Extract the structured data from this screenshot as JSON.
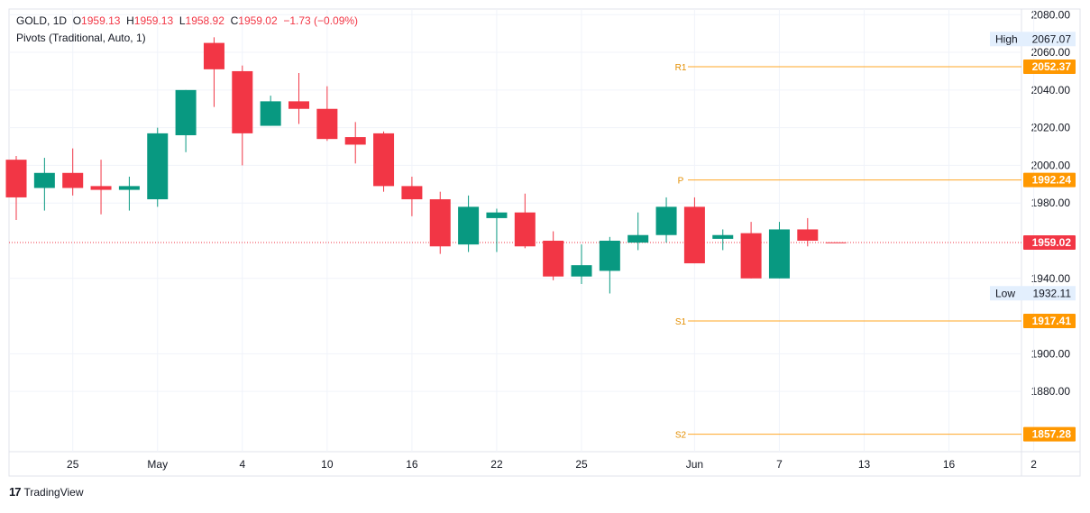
{
  "legend": {
    "symbol": "GOLD",
    "interval": "1D",
    "open_label": "O",
    "open": "1959.13",
    "high_label": "H",
    "high": "1959.13",
    "low_label": "L",
    "low": "1958.92",
    "close_label": "C",
    "close": "1959.02",
    "change": "−1.73 (−0.09%)",
    "indicator": "Pivots (Traditional, Auto, 1)"
  },
  "footer": {
    "brand": "TradingView",
    "logo_glyph": "17"
  },
  "colors": {
    "up": "#089981",
    "down": "#f23645",
    "pivot": "#ffa726",
    "pivot_label_text": "#e38e00",
    "grid": "#f0f3fa",
    "axis_text": "#131722",
    "price_badge": "#f23645",
    "pivot_badge": "#ff9800",
    "hl_badge": "#e3effd"
  },
  "chart_data": {
    "type": "candlestick",
    "symbol": "GOLD",
    "interval": "1D",
    "ylim": [
      1848,
      2083
    ],
    "y_ticks": [
      2080,
      2060,
      2040,
      2020,
      2000,
      1980,
      1940,
      1900,
      1880
    ],
    "y_tick_labels": [
      "2080.00",
      "2060.00",
      "2040.00",
      "2020.00",
      "2000.00",
      "1980.00",
      "1940.00",
      "1900.00",
      "1880.00"
    ],
    "x_ticks": [
      {
        "label": "25",
        "bar": 2
      },
      {
        "label": "May",
        "bar": 5
      },
      {
        "label": "4",
        "bar": 8
      },
      {
        "label": "10",
        "bar": 11
      },
      {
        "label": "16",
        "bar": 14
      },
      {
        "label": "22",
        "bar": 17
      },
      {
        "label": "25",
        "bar": 20
      },
      {
        "label": "Jun",
        "bar": 24
      },
      {
        "label": "7",
        "bar": 27
      },
      {
        "label": "13",
        "bar": 30
      },
      {
        "label": "16",
        "bar": 33
      },
      {
        "label": "2",
        "bar": 36
      }
    ],
    "candles": [
      {
        "o": 2003,
        "h": 2005,
        "l": 1971,
        "c": 1983
      },
      {
        "o": 1988,
        "h": 2004,
        "l": 1976,
        "c": 1996
      },
      {
        "o": 1996,
        "h": 2009,
        "l": 1984,
        "c": 1988
      },
      {
        "o": 1989,
        "h": 2003,
        "l": 1974,
        "c": 1987
      },
      {
        "o": 1987,
        "h": 1994,
        "l": 1976,
        "c": 1989
      },
      {
        "o": 1982,
        "h": 2020,
        "l": 1978,
        "c": 2017
      },
      {
        "o": 2016,
        "h": 2040,
        "l": 2007,
        "c": 2040
      },
      {
        "o": 2065,
        "h": 2068,
        "l": 2031,
        "c": 2051
      },
      {
        "o": 2050,
        "h": 2053,
        "l": 2000,
        "c": 2017
      },
      {
        "o": 2021,
        "h": 2037,
        "l": 2021,
        "c": 2034
      },
      {
        "o": 2034,
        "h": 2049,
        "l": 2022,
        "c": 2030
      },
      {
        "o": 2030,
        "h": 2042,
        "l": 2013,
        "c": 2014
      },
      {
        "o": 2015,
        "h": 2023,
        "l": 2001,
        "c": 2011
      },
      {
        "o": 2017,
        "h": 2018,
        "l": 1986,
        "c": 1989
      },
      {
        "o": 1989,
        "h": 1994,
        "l": 1973,
        "c": 1982
      },
      {
        "o": 1982,
        "h": 1986,
        "l": 1953,
        "c": 1957
      },
      {
        "o": 1958,
        "h": 1984,
        "l": 1954,
        "c": 1978
      },
      {
        "o": 1972,
        "h": 1977,
        "l": 1954,
        "c": 1975
      },
      {
        "o": 1975,
        "h": 1985,
        "l": 1956,
        "c": 1957
      },
      {
        "o": 1960,
        "h": 1965,
        "l": 1939,
        "c": 1941
      },
      {
        "o": 1941,
        "h": 1958,
        "l": 1937,
        "c": 1947
      },
      {
        "o": 1944,
        "h": 1962,
        "l": 1932,
        "c": 1960
      },
      {
        "o": 1959,
        "h": 1975,
        "l": 1955,
        "c": 1963
      },
      {
        "o": 1963,
        "h": 1983,
        "l": 1959,
        "c": 1978
      },
      {
        "o": 1978,
        "h": 1983,
        "l": 1948,
        "c": 1948
      },
      {
        "o": 1961,
        "h": 1966,
        "l": 1955,
        "c": 1963
      },
      {
        "o": 1964,
        "h": 1970,
        "l": 1940,
        "c": 1940
      },
      {
        "o": 1940,
        "h": 1970,
        "l": 1940,
        "c": 1966
      },
      {
        "o": 1966,
        "h": 1972,
        "l": 1957,
        "c": 1960
      },
      {
        "o": 1959.13,
        "h": 1959.13,
        "l": 1958.92,
        "c": 1959.02
      }
    ],
    "pivots": [
      {
        "name": "R1",
        "value": 2052.37,
        "label": "2052.37"
      },
      {
        "name": "P",
        "value": 1992.24,
        "label": "1992.24"
      },
      {
        "name": "S1",
        "value": 1917.41,
        "label": "1917.41"
      },
      {
        "name": "S2",
        "value": 1857.28,
        "label": "1857.28"
      }
    ],
    "last_price": {
      "value": 1959.02,
      "label": "1959.02"
    },
    "high": {
      "title": "High",
      "value": 2067.07,
      "label": "2067.07"
    },
    "low": {
      "title": "Low",
      "value": 1932.11,
      "label": "1932.11"
    }
  }
}
